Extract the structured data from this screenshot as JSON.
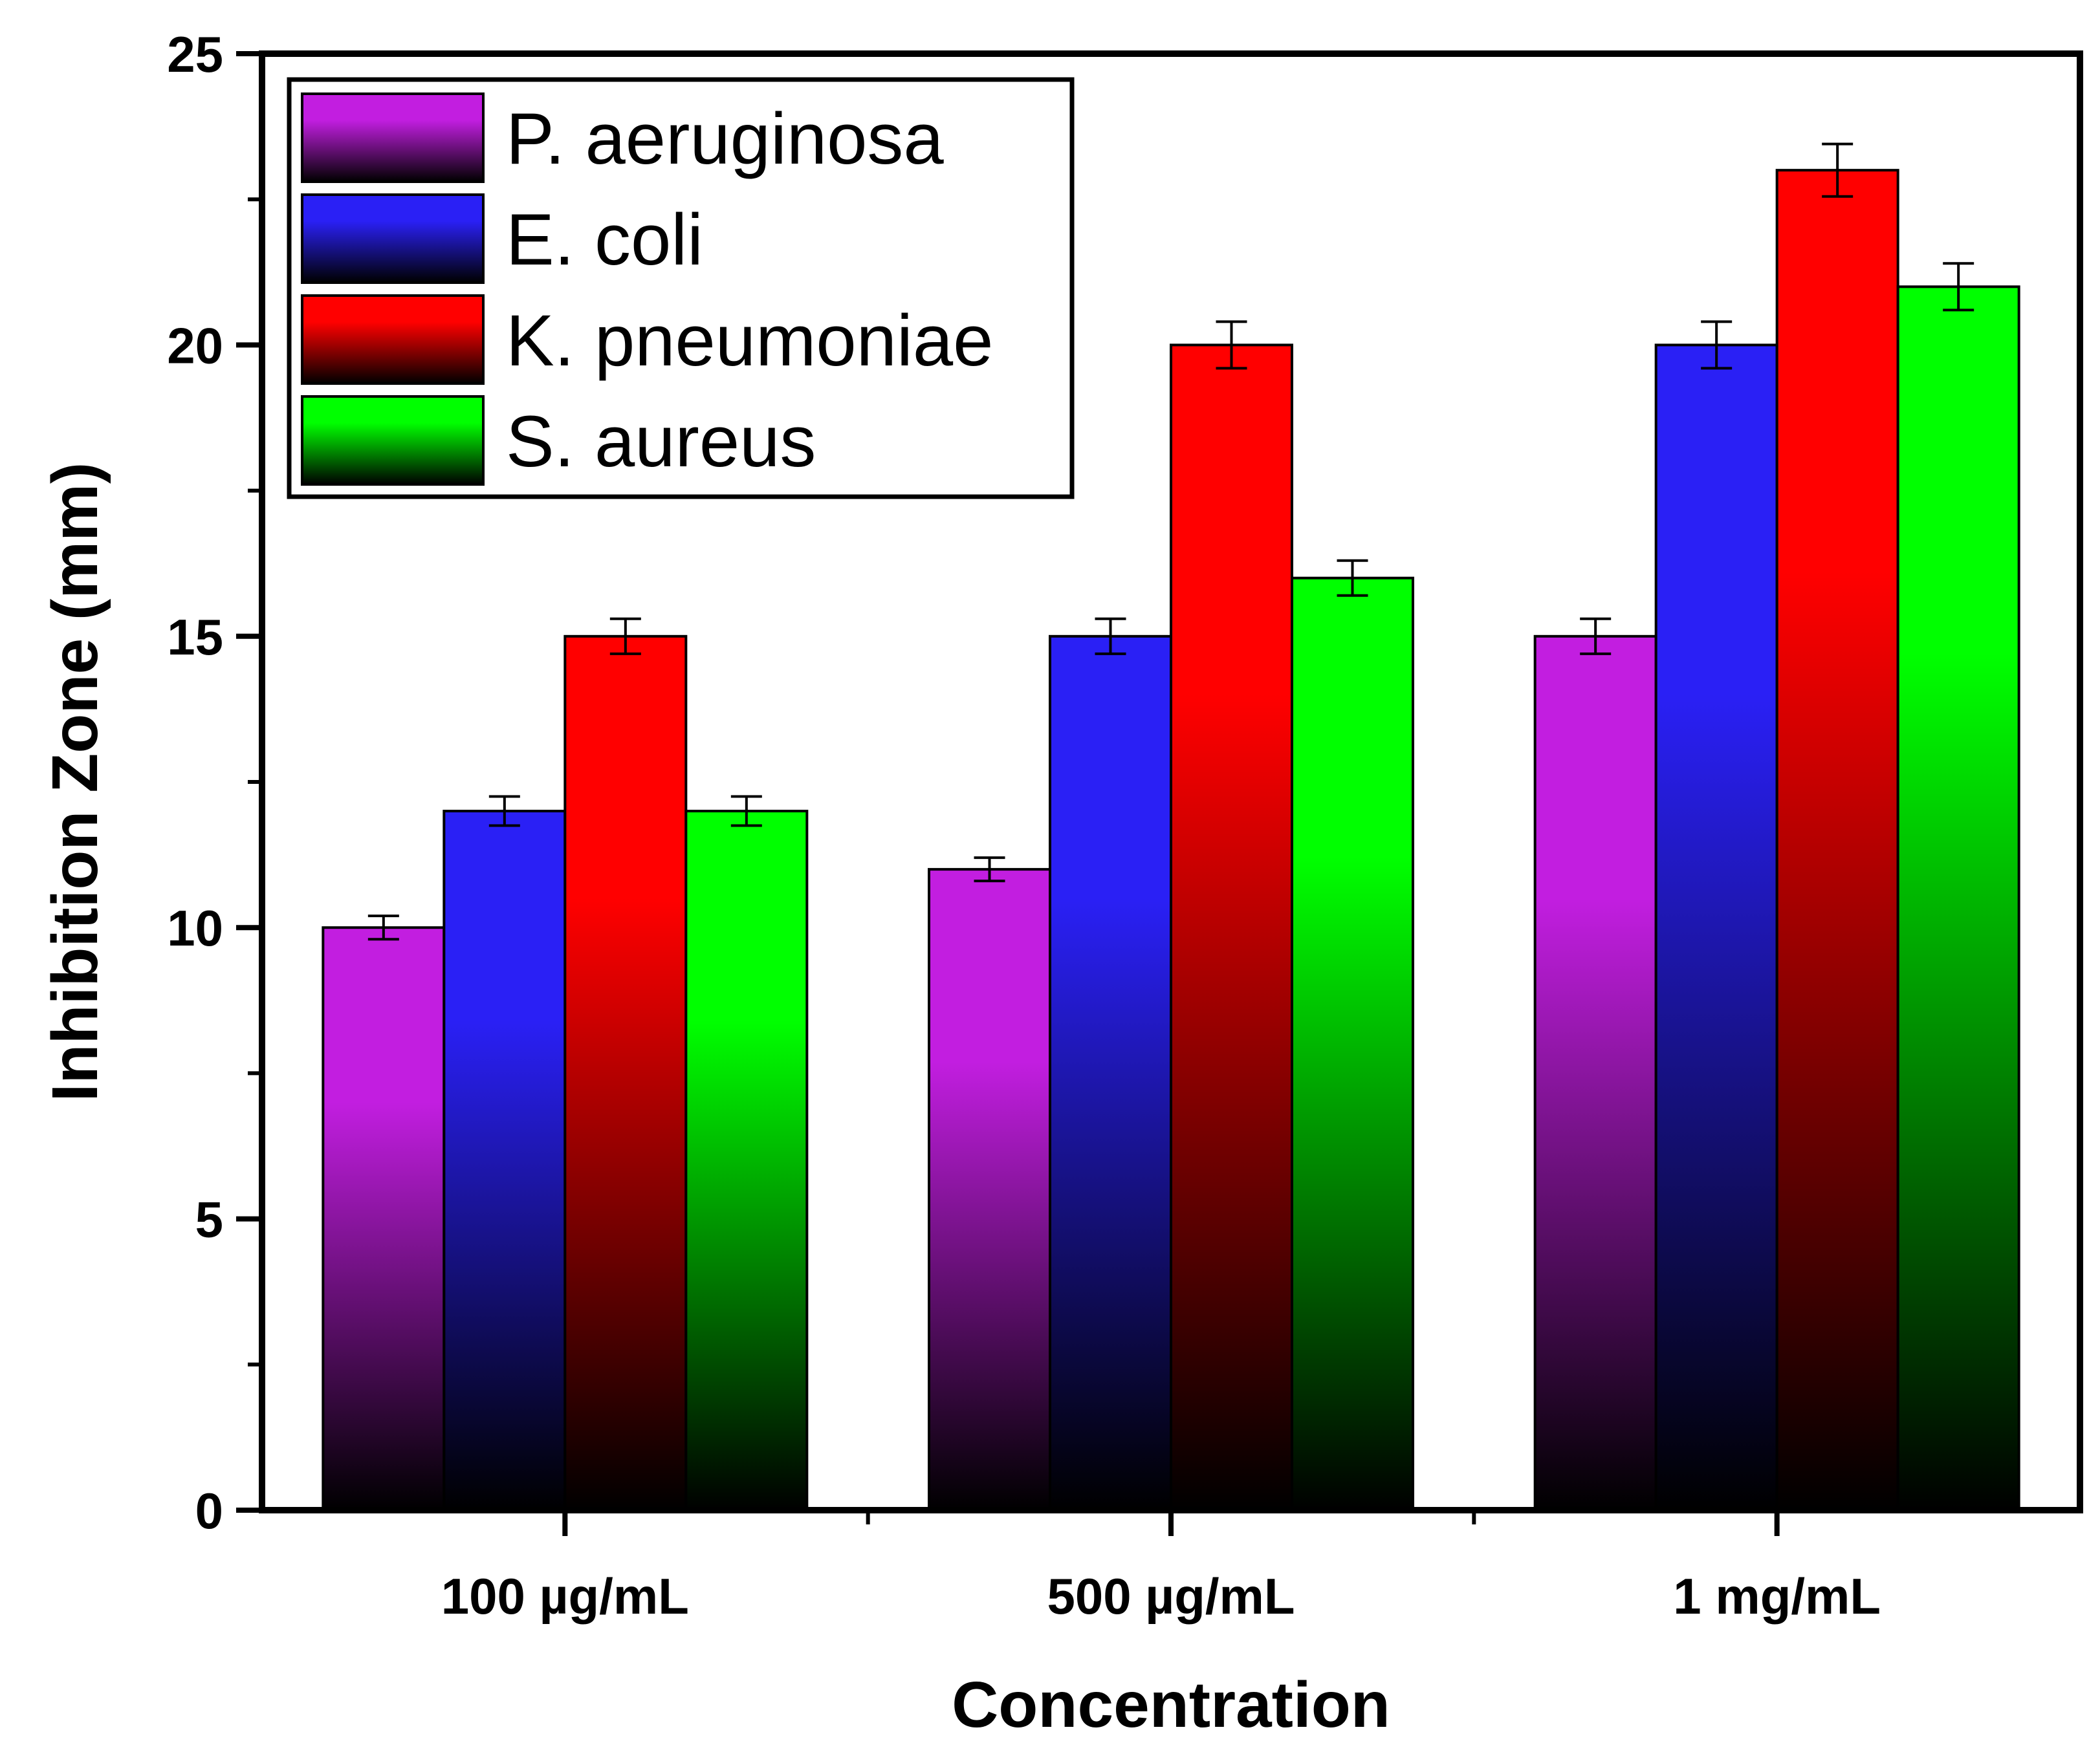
{
  "chart_data": {
    "type": "bar",
    "title": "",
    "xlabel": "Concentration",
    "ylabel": "Inhibition Zone (mm)",
    "ylim": [
      0,
      25
    ],
    "yticks": [
      "0",
      "5",
      "10",
      "15",
      "20",
      "25"
    ],
    "categories": [
      "100 µg/mL",
      "500 µg/mL",
      "1 mg/mL"
    ],
    "series": [
      {
        "name": "P. aeruginosa",
        "values": [
          10,
          11,
          15
        ],
        "errors": [
          0.2,
          0.2,
          0.3
        ],
        "color": "#c21ee0"
      },
      {
        "name": "E. coli",
        "values": [
          12,
          15,
          20
        ],
        "errors": [
          0.25,
          0.3,
          0.4
        ],
        "color": "#2a20f5"
      },
      {
        "name": "K. pneumoniae",
        "values": [
          15,
          20,
          23
        ],
        "errors": [
          0.3,
          0.4,
          0.45
        ],
        "color": "#ff0000"
      },
      {
        "name": "S. aureus",
        "values": [
          12,
          16,
          21
        ],
        "errors": [
          0.25,
          0.3,
          0.4
        ],
        "color": "#00ff00"
      }
    ],
    "legend_position": "top-left",
    "grid": false
  }
}
